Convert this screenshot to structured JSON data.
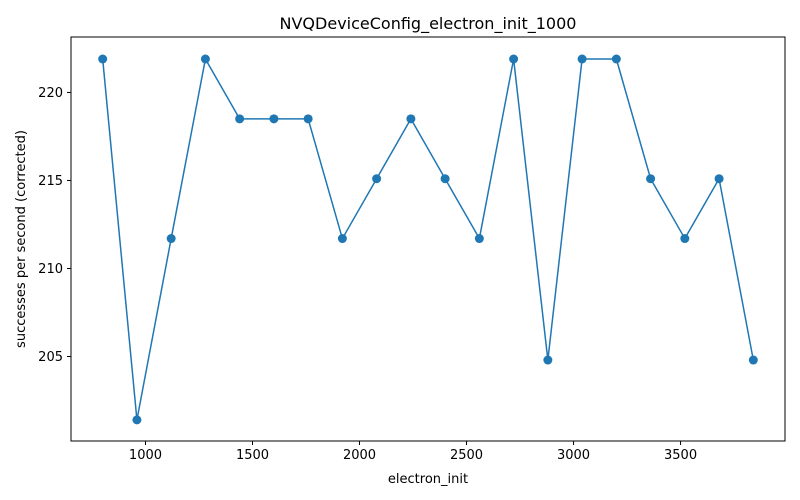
{
  "chart_data": {
    "type": "line",
    "title": "NVQDeviceConfig_electron_init_1000",
    "xlabel": "electron_init",
    "ylabel": "successes per second (corrected)",
    "xlim": [
      652,
      3988
    ],
    "ylim": [
      200.2,
      223.15
    ],
    "xticks": [
      1000,
      1500,
      2000,
      2500,
      3000,
      3500
    ],
    "yticks": [
      205,
      210,
      215,
      220
    ],
    "grid": false,
    "series": [
      {
        "color": "#1f77b4",
        "marker": "circle",
        "x": [
          800,
          960,
          1120,
          1280,
          1440,
          1600,
          1760,
          1920,
          2080,
          2240,
          2400,
          2560,
          2720,
          2880,
          3040,
          3200,
          3360,
          3520,
          3680,
          3840
        ],
        "y": [
          221.9,
          201.4,
          211.7,
          221.9,
          218.5,
          218.5,
          218.5,
          211.7,
          215.1,
          218.5,
          215.1,
          211.7,
          221.9,
          204.8,
          221.9,
          221.9,
          215.1,
          211.7,
          215.1,
          204.8
        ]
      }
    ]
  }
}
